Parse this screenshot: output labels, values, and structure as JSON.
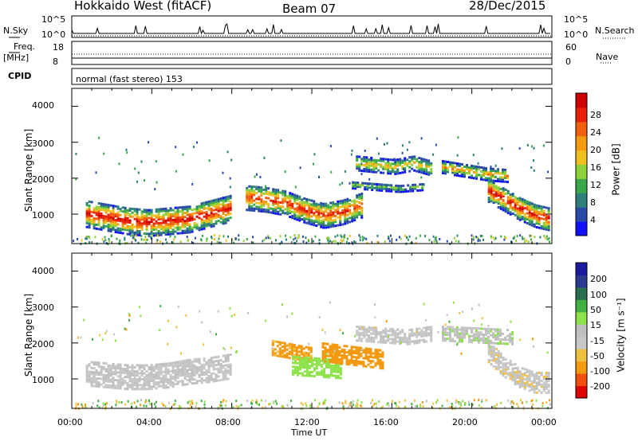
{
  "header": {
    "station": "Hokkaido West (fitACF)",
    "beam": "Beam 07",
    "date": "28/Dec/2015"
  },
  "params": {
    "nsky_label": "N.Sky",
    "nsky_ticks": [
      "10^5",
      "10^0"
    ],
    "nsearch_label": "N.Search",
    "nsearch_ticks": [
      "10^5",
      "10^0"
    ],
    "freq_label": "Freq.",
    "freq_unit": "[MHz]",
    "freq_ticks": [
      "18",
      "8"
    ],
    "nave_label": "Nave",
    "nave_ticks": [
      "60",
      "0"
    ],
    "cpid_label": "CPID",
    "cpid_text": "normal (fast stereo) 153"
  },
  "colors": {
    "power": [
      "#1010ff",
      "#2a4aa8",
      "#2e7f7a",
      "#3aa84a",
      "#8ed23a",
      "#f0c020",
      "#f39a10",
      "#f06010",
      "#e82008",
      "#cc0000"
    ],
    "velocity": [
      "#e00000",
      "#f05010",
      "#f39a10",
      "#f0c040",
      "#c8c8c8",
      "#c0c0c0",
      "#8ee24a",
      "#42b042",
      "#2a7050",
      "#2a3a90",
      "#1a1aa0"
    ]
  },
  "chart_data": [
    {
      "type": "heatmap",
      "panel": "power",
      "ylabel": "Slant Range [km]",
      "ylim": [
        180,
        4500
      ],
      "yticks": [
        "4000",
        "3000",
        "2000",
        "1000"
      ],
      "xlabel": "Time UT",
      "xlim_hours": [
        0,
        24
      ],
      "xticks": [
        "00:00",
        "04:00",
        "08:00",
        "12:00",
        "16:00",
        "20:00",
        "00:00"
      ],
      "colorbar": {
        "label": "Power [dB]",
        "ticks": [
          "4",
          "8",
          "12",
          "16",
          "20",
          "24",
          "28"
        ],
        "range": [
          0,
          32
        ]
      },
      "regions": [
        {
          "t": [
            0.7,
            7.9
          ],
          "center_km": [
            1050,
            950,
            850,
            800,
            850,
            900,
            1050,
            1200
          ],
          "width_km": 750,
          "peak": 30
        },
        {
          "t": [
            8.7,
            14.5
          ],
          "center_km": [
            1500,
            1450,
            1350,
            1150,
            1000,
            1100,
            1300
          ],
          "width_km": 700,
          "peak": 28
        },
        {
          "t": [
            14.2,
            18.0
          ],
          "center_km": [
            2450,
            2400,
            2350,
            2450,
            2300
          ],
          "width_km": 400,
          "peak": 20
        },
        {
          "t": [
            14.0,
            17.5
          ],
          "center_km": [
            1850,
            1800,
            1750,
            1800
          ],
          "width_km": 200,
          "peak": 14
        },
        {
          "t": [
            18.5,
            21.8
          ],
          "center_km": [
            2350,
            2250,
            2150,
            2100
          ],
          "width_km": 350,
          "peak": 22
        },
        {
          "t": [
            20.8,
            23.9
          ],
          "center_km": [
            1700,
            1450,
            1200,
            1000,
            900
          ],
          "width_km": 650,
          "peak": 30
        }
      ]
    },
    {
      "type": "heatmap",
      "panel": "velocity",
      "ylabel": "Slant Range [km]",
      "ylim": [
        180,
        4500
      ],
      "yticks": [
        "4000",
        "3000",
        "2000",
        "1000"
      ],
      "xlabel": "Time UT",
      "xlim_hours": [
        0,
        24
      ],
      "xticks": [
        "00:00",
        "04:00",
        "08:00",
        "12:00",
        "16:00",
        "20:00",
        "00:00"
      ],
      "colorbar": {
        "label": "Velocity [m s⁻¹]",
        "ticks": [
          "200",
          "100",
          "50",
          "15",
          "-15",
          "-50",
          "-100",
          "-200"
        ],
        "range": [
          -250,
          250
        ]
      },
      "regions": [
        {
          "t": [
            0.7,
            7.9
          ],
          "center_km": [
            1200,
            1150,
            1100,
            1100,
            1150,
            1250,
            1300,
            1400
          ],
          "width_km": 700,
          "vel": 0
        },
        {
          "t": [
            10.0,
            12.0
          ],
          "center_km": [
            1900,
            1800,
            1700
          ],
          "width_km": 400,
          "vel": -60
        },
        {
          "t": [
            11.0,
            13.5
          ],
          "center_km": [
            1400,
            1350,
            1300
          ],
          "width_km": 500,
          "vel": 35
        },
        {
          "t": [
            12.5,
            15.5
          ],
          "center_km": [
            1800,
            1700,
            1600
          ],
          "width_km": 550,
          "vel": -80
        },
        {
          "t": [
            14.2,
            18.0
          ],
          "center_km": [
            2300,
            2250,
            2200,
            2300
          ],
          "width_km": 400,
          "vel": 0
        },
        {
          "t": [
            18.5,
            22.0
          ],
          "center_km": [
            2300,
            2250,
            2200
          ],
          "width_km": 400,
          "vel": 5
        },
        {
          "t": [
            20.8,
            23.9
          ],
          "center_km": [
            1800,
            1400,
            1100,
            950,
            950
          ],
          "width_km": 600,
          "vel": -5
        }
      ]
    }
  ]
}
